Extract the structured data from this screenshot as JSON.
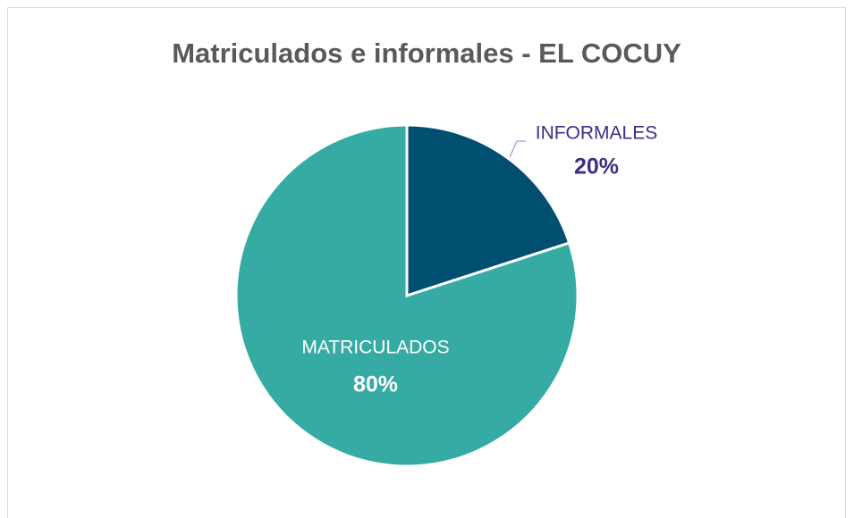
{
  "chart_data": {
    "type": "pie",
    "title": "Matriculados e informales - EL COCUY",
    "categories": [
      "INFORMALES",
      "MATRICULADOS"
    ],
    "values": [
      20,
      80
    ],
    "value_labels": [
      "20%",
      "80%"
    ],
    "colors": [
      "#004f71",
      "#36aba4"
    ]
  }
}
